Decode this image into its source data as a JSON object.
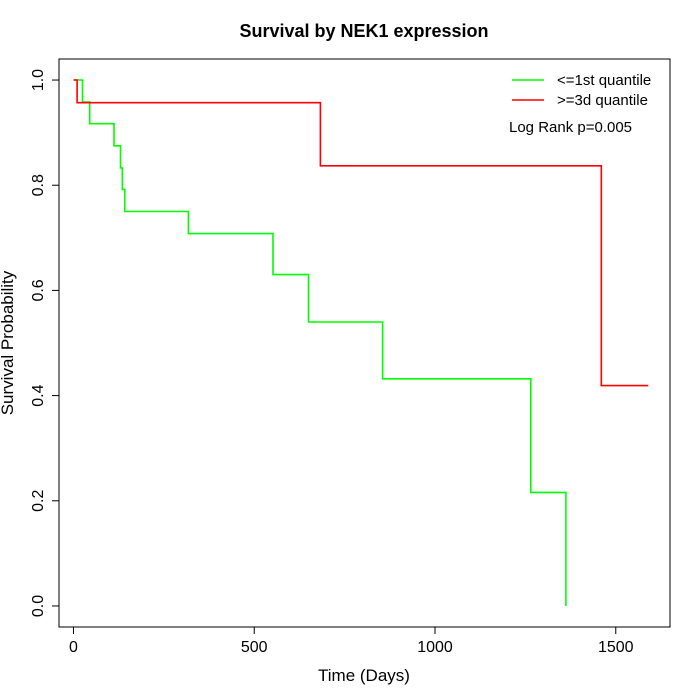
{
  "chart_data": {
    "type": "line",
    "title": "Survival by NEK1 expression",
    "xlabel": "Time (Days)",
    "ylabel": "Survival Probability",
    "xlim": [
      -40,
      1650
    ],
    "ylim": [
      -0.04,
      1.04
    ],
    "x_ticks": [
      0,
      500,
      1000,
      1500
    ],
    "x_tick_labels": [
      "0",
      "500",
      "1000",
      "1500"
    ],
    "y_ticks": [
      0.0,
      0.2,
      0.4,
      0.6,
      0.8,
      1.0
    ],
    "y_tick_labels": [
      "0.0",
      "0.2",
      "0.4",
      "0.6",
      "0.8",
      "1.0"
    ],
    "grid": false,
    "legend_position": "top-right",
    "annotation": "Log Rank p=0.005",
    "series": [
      {
        "name": "<=1st quantile",
        "color": "#00ff00",
        "step": [
          [
            0,
            1.0
          ],
          [
            25,
            1.0
          ],
          [
            25,
            0.958
          ],
          [
            45,
            0.958
          ],
          [
            45,
            0.917
          ],
          [
            112,
            0.917
          ],
          [
            112,
            0.875
          ],
          [
            130,
            0.875
          ],
          [
            130,
            0.833
          ],
          [
            135,
            0.833
          ],
          [
            135,
            0.792
          ],
          [
            142,
            0.792
          ],
          [
            142,
            0.75
          ],
          [
            318,
            0.75
          ],
          [
            318,
            0.708
          ],
          [
            552,
            0.708
          ],
          [
            552,
            0.63
          ],
          [
            650,
            0.63
          ],
          [
            650,
            0.54
          ],
          [
            855,
            0.54
          ],
          [
            855,
            0.432
          ],
          [
            1265,
            0.432
          ],
          [
            1265,
            0.216
          ],
          [
            1362,
            0.216
          ],
          [
            1362,
            0.0
          ]
        ]
      },
      {
        "name": ">=3d quantile",
        "color": "#ff0000",
        "step": [
          [
            0,
            1.0
          ],
          [
            10,
            1.0
          ],
          [
            10,
            0.957
          ],
          [
            683,
            0.957
          ],
          [
            683,
            0.837
          ],
          [
            1460,
            0.837
          ],
          [
            1460,
            0.419
          ],
          [
            1590,
            0.419
          ]
        ]
      }
    ]
  }
}
